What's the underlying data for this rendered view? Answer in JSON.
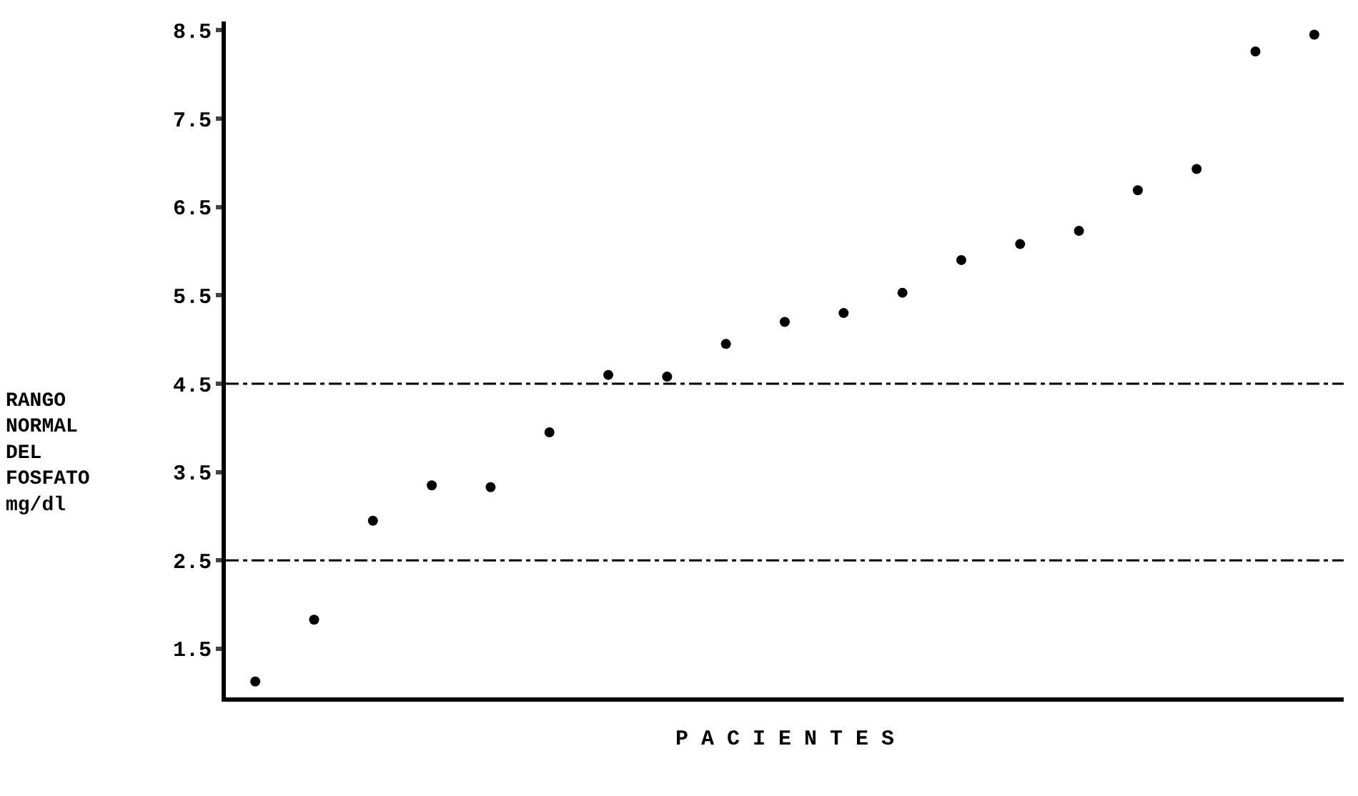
{
  "chart_data": {
    "type": "scatter",
    "xlabel": "P A C I E N T E S",
    "ylabel": "RANGO NORMAL DEL FOSFATO mg/dl",
    "categories": [
      null,
      null,
      null,
      null,
      null,
      null,
      null,
      null,
      null,
      null,
      null,
      null,
      null,
      null,
      null,
      null,
      null,
      null,
      null
    ],
    "series": [
      {
        "color": "#000000",
        "values": [
          1.13,
          1.83,
          2.95,
          3.35,
          3.33,
          3.95,
          4.6,
          4.58,
          4.95,
          5.2,
          5.3,
          5.53,
          5.9,
          6.08,
          6.23,
          6.69,
          6.93,
          8.26,
          8.45
        ]
      }
    ],
    "ylim": [
      0.95,
      8.6
    ],
    "yticks": [
      1.5,
      2.5,
      3.5,
      4.5,
      5.5,
      6.5,
      7.5,
      8.5
    ],
    "ref_lines": [
      {
        "axis": "y",
        "value": 4.5,
        "line_style": "dashed",
        "color": "#000000"
      },
      {
        "axis": "y",
        "value": 2.5,
        "line_style": "dashed",
        "color": "#000000"
      }
    ],
    "marker": "circle",
    "grid": false
  }
}
